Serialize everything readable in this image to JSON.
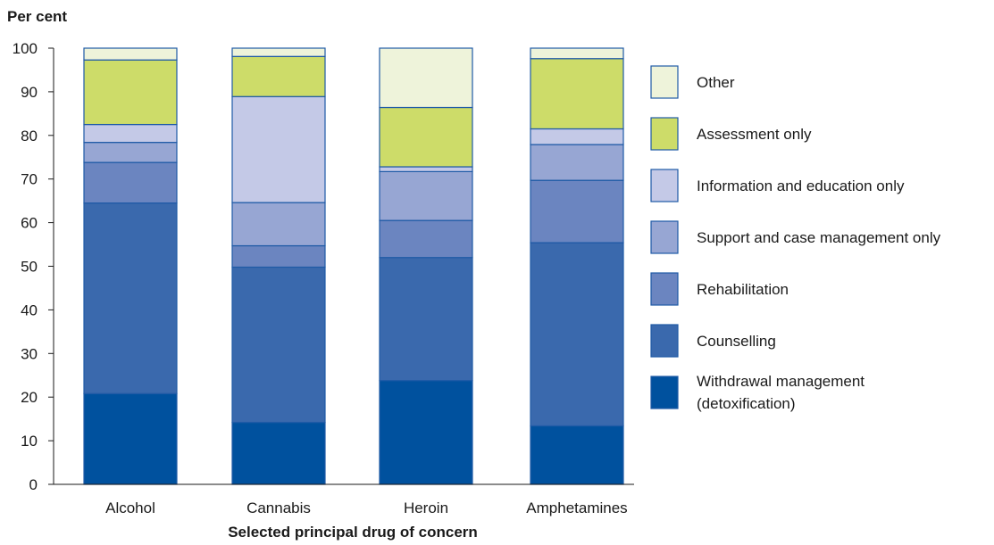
{
  "chart_data": {
    "type": "bar",
    "stacked": true,
    "ylabel": "Per cent",
    "xlabel": "Selected principal drug of concern",
    "ylim": [
      0,
      100
    ],
    "yticks": [
      0,
      10,
      20,
      30,
      40,
      50,
      60,
      70,
      80,
      90,
      100
    ],
    "grid": false,
    "legend_position": "right",
    "categories": [
      "Alcohol",
      "Cannabis",
      "Heroin",
      "Amphetamines"
    ],
    "series": [
      {
        "name": "Withdrawal management (detoxification)",
        "legend_lines": [
          "Withdrawal management",
          "(detoxification)"
        ],
        "color": "#00519e",
        "values": [
          20.8,
          14.2,
          23.8,
          13.4
        ]
      },
      {
        "name": "Counselling",
        "color": "#3a69ad",
        "values": [
          43.7,
          35.6,
          28.2,
          42.0
        ]
      },
      {
        "name": "Rehabilitation",
        "color": "#6b85c0",
        "values": [
          9.3,
          4.9,
          8.5,
          14.3
        ]
      },
      {
        "name": "Support and case management only",
        "color": "#97a6d3",
        "values": [
          4.6,
          9.9,
          11.2,
          8.2
        ]
      },
      {
        "name": "Information and education only",
        "color": "#c4c9e7",
        "values": [
          4.1,
          24.3,
          1.1,
          3.6
        ]
      },
      {
        "name": "Assessment only",
        "color": "#cddc69",
        "values": [
          14.8,
          9.2,
          13.6,
          16.1
        ]
      },
      {
        "name": "Other",
        "color": "#eef3da",
        "values": [
          2.7,
          1.9,
          13.6,
          2.4
        ]
      }
    ]
  }
}
